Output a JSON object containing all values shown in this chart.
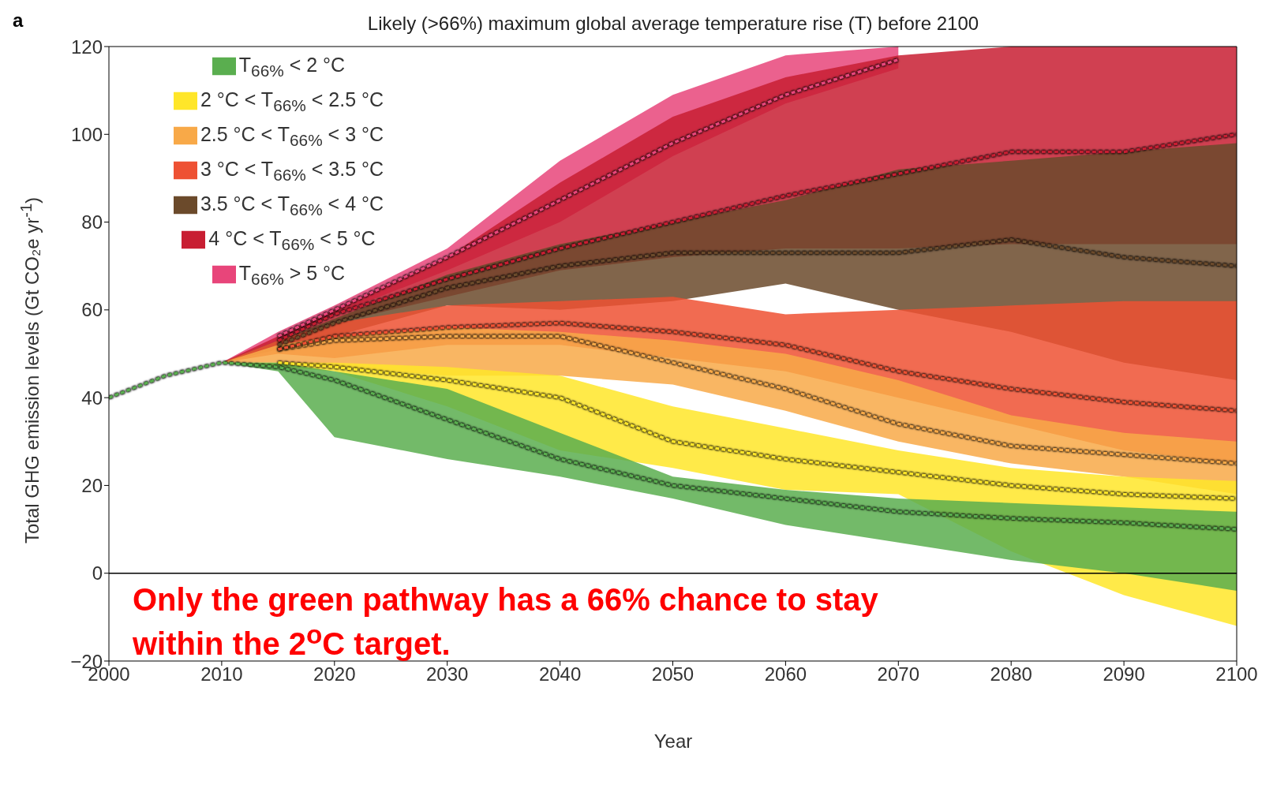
{
  "chart_data": {
    "type": "line",
    "title": "Likely (>66%) maximum global average temperature rise (T) before 2100",
    "xlabel": "Year",
    "ylabel": "Total GHG emission levels (Gt CO₂e yr$^{-1}$)",
    "x": [
      2000,
      2005,
      2010,
      2015,
      2020,
      2030,
      2040,
      2050,
      2060,
      2070,
      2080,
      2090,
      2100
    ],
    "xlim": [
      2000,
      2100
    ],
    "xticks": [
      2000,
      2010,
      2020,
      2030,
      2040,
      2050,
      2060,
      2070,
      2080,
      2090,
      2100
    ],
    "ylim": [
      -20,
      120
    ],
    "yticks": [
      {
        "value": -20,
        "label": "−20"
      },
      0,
      20,
      40,
      60,
      80,
      100,
      120
    ],
    "grid": false,
    "legend": "top left",
    "line_style": "dashed",
    "marker": "none",
    "ref_lines": [
      {
        "axis": "y",
        "value": 0,
        "color": "#000000"
      }
    ],
    "annotations": [
      "a",
      "Only the green pathway has a 66% chance to stay within the 2$^{o}$C target."
    ],
    "series": [
      {
        "name": "T$_{66%}$ < 2 °C",
        "color": "#5aae4f",
        "values": [
          40,
          45,
          48,
          47,
          44,
          35,
          26,
          20,
          17,
          14,
          12.5,
          11.5,
          10
        ],
        "lower": [
          40,
          45,
          48,
          46,
          31,
          26,
          22,
          17,
          11,
          7,
          3,
          0,
          -4
        ],
        "upper": [
          40,
          45,
          48,
          48,
          46,
          42,
          32,
          22,
          19,
          17,
          16,
          15,
          14
        ]
      },
      {
        "name": "2 °C < T$_{66%}$ < 2.5 °C",
        "color": "#ffe629",
        "values": [
          null,
          null,
          null,
          48,
          47,
          44,
          40,
          30,
          26,
          23,
          20,
          18,
          17
        ],
        "lower": [
          null,
          null,
          48,
          47,
          46,
          38,
          28,
          24,
          19,
          18,
          5,
          -5,
          -12
        ],
        "upper": [
          null,
          null,
          48,
          48,
          48,
          47,
          45,
          38,
          33,
          28,
          24,
          22,
          21
        ]
      },
      {
        "name": "2.5 °C < T$_{66%}$ < 3 °C",
        "color": "#f8a948",
        "values": [
          null,
          null,
          null,
          51,
          53,
          54,
          54,
          48,
          42,
          34,
          29,
          27,
          25
        ],
        "lower": [
          null,
          null,
          48,
          48,
          47,
          45,
          45,
          43,
          37,
          30,
          25,
          22,
          18
        ],
        "upper": [
          null,
          null,
          48,
          52,
          54,
          56,
          55,
          53,
          50,
          44,
          36,
          32,
          30
        ]
      },
      {
        "name": "3 °C < T$_{66%}$ < 3.5 °C",
        "color": "#ee5133",
        "values": [
          null,
          null,
          null,
          51,
          54,
          56,
          57,
          55,
          52,
          46,
          42,
          39,
          37
        ],
        "lower": [
          null,
          null,
          48,
          50,
          49,
          52,
          52,
          49,
          46,
          40,
          34,
          28,
          25
        ],
        "upper": [
          null,
          null,
          48,
          53,
          57,
          61,
          62,
          63,
          59,
          60,
          61,
          62,
          62
        ]
      },
      {
        "name": "3.5 °C < T$_{66%}$ < 4 °C",
        "color": "#6b4a2b",
        "values": [
          null,
          null,
          null,
          52,
          57,
          65,
          70,
          73,
          73,
          73,
          76,
          72,
          70
        ],
        "lower": [
          null,
          null,
          48,
          51,
          54,
          61,
          60,
          62,
          66,
          60,
          55,
          48,
          44
        ],
        "upper": [
          null,
          null,
          48,
          53,
          58,
          68,
          75,
          80,
          85,
          92,
          94,
          96,
          98
        ]
      },
      {
        "name": "4 °C < T$_{66%}$ < 5 °C",
        "color": "#c81e32",
        "values": [
          null,
          null,
          null,
          53,
          59,
          67,
          74,
          80,
          86,
          91,
          96,
          96,
          100
        ],
        "lower": [
          null,
          null,
          48,
          52,
          57,
          63,
          69,
          72,
          74,
          74,
          75,
          75,
          75
        ],
        "upper": [
          null,
          null,
          48,
          54,
          60,
          72,
          89,
          104,
          113,
          118,
          120,
          120,
          120
        ]
      },
      {
        "name": "T$_{66%}$ > 5 °C",
        "color": "#e8457a",
        "values": [
          null,
          null,
          null,
          54,
          60,
          72,
          85,
          98,
          109,
          117,
          null,
          null,
          null
        ],
        "lower": [
          null,
          null,
          48,
          53,
          59,
          69,
          80,
          95,
          107,
          115,
          null,
          null,
          null
        ],
        "upper": [
          null,
          null,
          48,
          55,
          61,
          74,
          94,
          109,
          118,
          120,
          null,
          null,
          null
        ]
      }
    ]
  }
}
